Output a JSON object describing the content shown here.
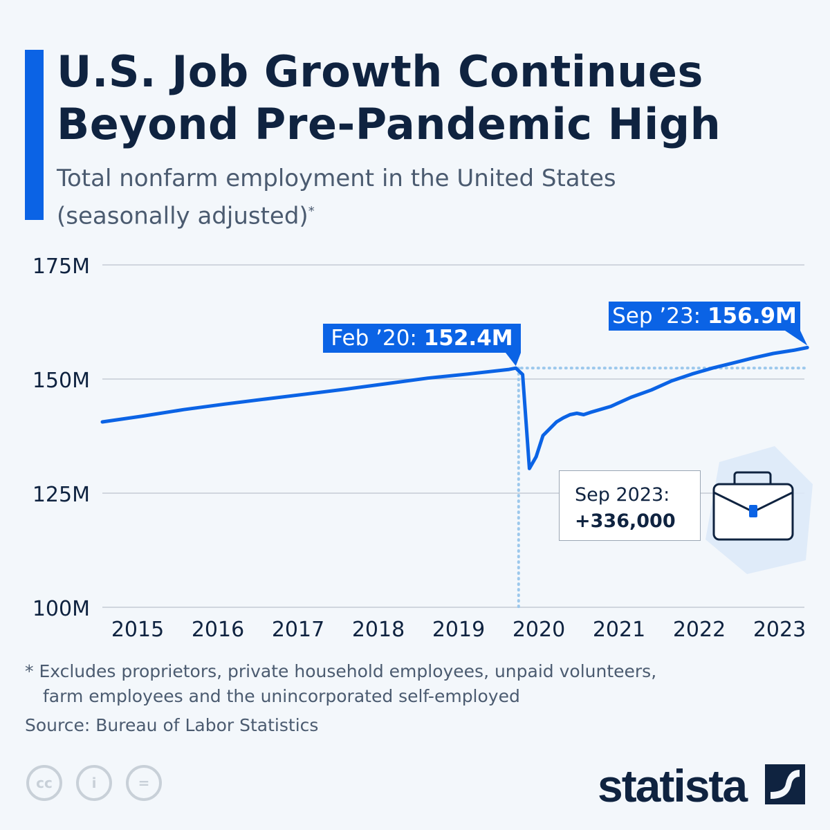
{
  "title_line1": "U.S. Job Growth Continues",
  "title_line2": "Beyond Pre-Pandemic High",
  "subtitle_line1": "Total nonfarm employment in the United States",
  "subtitle_line2": "(seasonally adjusted)",
  "subtitle_mark": "*",
  "callout": {
    "label": "Sep 2023:",
    "value": "+336,000",
    "icon": "briefcase-icon"
  },
  "footnote_line1": "* Excludes proprietors, private household employees, unpaid volunteers,",
  "footnote_line2": "farm employees and the unincorporated self-employed",
  "source": "Source: Bureau of Labor Statistics",
  "license_icons": [
    "cc-icon",
    "attribution-icon",
    "no-derivatives-icon"
  ],
  "brand": "statista",
  "colors": {
    "line": "#0b63e5",
    "reference": "#9cc8ec",
    "text": "#0f2340",
    "background": "#f3f7fb"
  },
  "chart_data": {
    "type": "line",
    "ylabel": "",
    "xlabel": "",
    "ylim": [
      100,
      175
    ],
    "yticks": [
      {
        "v": 175,
        "label": "175M"
      },
      {
        "v": 150,
        "label": "150M"
      },
      {
        "v": 125,
        "label": "125M"
      },
      {
        "v": 100,
        "label": "100M"
      }
    ],
    "xticks": [
      "2015",
      "2016",
      "2017",
      "2018",
      "2019",
      "2020",
      "2021",
      "2022",
      "2023"
    ],
    "grid": true,
    "series": [
      {
        "unit": "M",
        "x": [
          "2015-01",
          "2015-07",
          "2016-01",
          "2016-07",
          "2017-01",
          "2017-07",
          "2018-01",
          "2018-07",
          "2019-01",
          "2019-07",
          "2020-01",
          "2020-02",
          "2020-03",
          "2020-04",
          "2020-05",
          "2020-06",
          "2020-07",
          "2020-08",
          "2020-09",
          "2020-10",
          "2020-11",
          "2020-12",
          "2021-01",
          "2021-04",
          "2021-07",
          "2021-10",
          "2022-01",
          "2022-04",
          "2022-07",
          "2022-10",
          "2023-01",
          "2023-04",
          "2023-07",
          "2023-09"
        ],
        "y": [
          140.6,
          141.9,
          143.3,
          144.5,
          145.6,
          146.7,
          147.8,
          149.0,
          150.2,
          151.1,
          152.1,
          152.4,
          151.0,
          130.4,
          133.0,
          137.6,
          139.1,
          140.6,
          141.5,
          142.2,
          142.5,
          142.2,
          142.7,
          144.0,
          146.0,
          147.6,
          149.6,
          151.1,
          152.4,
          153.5,
          154.6,
          155.6,
          156.3,
          156.9
        ]
      }
    ],
    "annotations": [
      {
        "x": "2020-02",
        "y": 152.4,
        "label": "Feb ’20: ",
        "value": "152.4M"
      },
      {
        "x": "2023-09",
        "y": 156.9,
        "label": "Sep ’23: ",
        "value": "156.9M"
      }
    ],
    "reference_lines": [
      {
        "type": "horizontal",
        "y": 152.4
      },
      {
        "type": "vertical",
        "x": "2020-02"
      }
    ]
  }
}
